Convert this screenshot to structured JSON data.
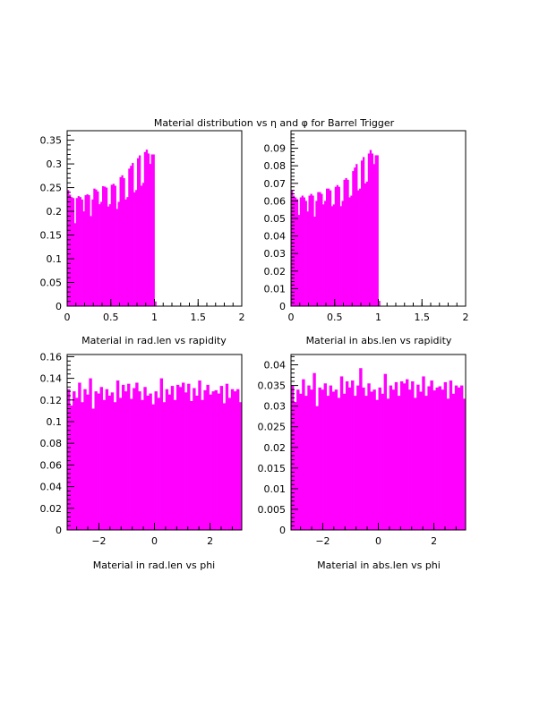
{
  "page": {
    "title": "Material distribution vs η and φ for Barrel Trigger"
  },
  "colors": {
    "bars": "#ff00ff",
    "axes": "#000000",
    "background": "#ffffff"
  },
  "chart_data": [
    {
      "type": "bar",
      "id": "radlen-vs-rapidity",
      "xlabel": "Material in rad.len vs rapidity",
      "ylabel": "",
      "xlim": [
        0,
        2
      ],
      "ylim": [
        0,
        0.37
      ],
      "xticks": [
        0,
        0.5,
        1,
        1.5,
        2
      ],
      "xtick_labels": [
        "0",
        "0.5",
        "1",
        "1.5",
        "2"
      ],
      "yticks": [
        0,
        0.05,
        0.1,
        0.15,
        0.2,
        0.25,
        0.3,
        0.35
      ],
      "ytick_labels": [
        "0",
        "0.05",
        "0.1",
        "0.15",
        "0.2",
        "0.25",
        "0.3",
        "0.35"
      ],
      "bin_width": 0.02,
      "x_start": 0,
      "values": [
        0.245,
        0.235,
        0.23,
        0.228,
        0.175,
        0.228,
        0.232,
        0.23,
        0.225,
        0.2,
        0.234,
        0.236,
        0.234,
        0.19,
        0.225,
        0.248,
        0.246,
        0.242,
        0.215,
        0.22,
        0.253,
        0.252,
        0.25,
        0.21,
        0.215,
        0.256,
        0.258,
        0.254,
        0.205,
        0.22,
        0.272,
        0.276,
        0.27,
        0.225,
        0.23,
        0.29,
        0.296,
        0.302,
        0.24,
        0.245,
        0.312,
        0.318,
        0.254,
        0.26,
        0.325,
        0.33,
        0.322,
        0.3,
        0.32,
        0.32,
        0.01
      ]
    },
    {
      "type": "bar",
      "id": "abslen-vs-rapidity",
      "xlabel": "Material in abs.len vs rapidity",
      "ylabel": "",
      "xlim": [
        0,
        2
      ],
      "ylim": [
        0,
        0.1
      ],
      "xticks": [
        0,
        0.5,
        1,
        1.5,
        2
      ],
      "xtick_labels": [
        "0",
        "0.5",
        "1",
        "1.5",
        "2"
      ],
      "yticks": [
        0,
        0.01,
        0.02,
        0.03,
        0.04,
        0.05,
        0.06,
        0.07,
        0.08,
        0.09
      ],
      "ytick_labels": [
        "0",
        "0.01",
        "0.02",
        "0.03",
        "0.04",
        "0.05",
        "0.06",
        "0.07",
        "0.08",
        "0.09"
      ],
      "bin_width": 0.02,
      "x_start": 0,
      "values": [
        0.066,
        0.063,
        0.062,
        0.061,
        0.052,
        0.062,
        0.063,
        0.062,
        0.06,
        0.054,
        0.063,
        0.064,
        0.063,
        0.051,
        0.06,
        0.065,
        0.065,
        0.064,
        0.058,
        0.06,
        0.067,
        0.067,
        0.066,
        0.057,
        0.058,
        0.068,
        0.069,
        0.068,
        0.057,
        0.06,
        0.072,
        0.073,
        0.072,
        0.062,
        0.063,
        0.077,
        0.079,
        0.081,
        0.066,
        0.067,
        0.083,
        0.085,
        0.07,
        0.071,
        0.087,
        0.089,
        0.087,
        0.081,
        0.086,
        0.086,
        0.003
      ]
    },
    {
      "type": "bar",
      "id": "radlen-vs-phi",
      "xlabel": "Material in rad.len vs phi",
      "ylabel": "",
      "xlim": [
        -3.1416,
        3.1416
      ],
      "ylim": [
        0,
        0.162
      ],
      "xticks": [
        -2,
        0,
        2
      ],
      "xtick_labels": [
        "−2",
        "0",
        "2"
      ],
      "yticks": [
        0,
        0.02,
        0.04,
        0.06,
        0.08,
        0.1,
        0.12,
        0.14,
        0.16
      ],
      "ytick_labels": [
        "0",
        "0.02",
        "0.04",
        "0.06",
        "0.08",
        "0.1",
        "0.12",
        "0.14",
        "0.16"
      ],
      "bin_width": 0.0982,
      "x_start": -3.1416,
      "values": [
        0.13,
        0.115,
        0.128,
        0.122,
        0.136,
        0.118,
        0.13,
        0.125,
        0.14,
        0.112,
        0.128,
        0.126,
        0.132,
        0.12,
        0.13,
        0.124,
        0.127,
        0.118,
        0.138,
        0.122,
        0.134,
        0.128,
        0.135,
        0.121,
        0.131,
        0.136,
        0.128,
        0.12,
        0.132,
        0.124,
        0.126,
        0.116,
        0.128,
        0.122,
        0.14,
        0.118,
        0.13,
        0.125,
        0.133,
        0.12,
        0.134,
        0.132,
        0.136,
        0.127,
        0.135,
        0.119,
        0.131,
        0.124,
        0.138,
        0.12,
        0.129,
        0.134,
        0.125,
        0.128,
        0.129,
        0.126,
        0.133,
        0.117,
        0.135,
        0.122,
        0.13,
        0.128,
        0.13,
        0.118
      ]
    },
    {
      "type": "bar",
      "id": "abslen-vs-phi",
      "xlabel": "Material in abs.len vs phi",
      "ylabel": "",
      "xlim": [
        -3.1416,
        3.1416
      ],
      "ylim": [
        0,
        0.0425
      ],
      "xticks": [
        -2,
        0,
        2
      ],
      "xtick_labels": [
        "−2",
        "0",
        "2"
      ],
      "yticks": [
        0,
        0.005,
        0.01,
        0.015,
        0.02,
        0.025,
        0.03,
        0.035,
        0.04
      ],
      "ytick_labels": [
        "0",
        "0.005",
        "0.01",
        "0.015",
        "0.02",
        "0.025",
        "0.03",
        "0.035",
        "0.04"
      ],
      "bin_width": 0.0982,
      "x_start": -3.1416,
      "values": [
        0.035,
        0.031,
        0.034,
        0.033,
        0.0365,
        0.0325,
        0.035,
        0.034,
        0.038,
        0.03,
        0.0345,
        0.034,
        0.0355,
        0.0325,
        0.035,
        0.0335,
        0.034,
        0.032,
        0.0372,
        0.033,
        0.036,
        0.0345,
        0.0362,
        0.0325,
        0.035,
        0.0392,
        0.0345,
        0.0325,
        0.0355,
        0.0335,
        0.034,
        0.0315,
        0.0345,
        0.033,
        0.0378,
        0.0318,
        0.035,
        0.034,
        0.0358,
        0.0325,
        0.036,
        0.0355,
        0.0365,
        0.034,
        0.036,
        0.032,
        0.0352,
        0.0335,
        0.0372,
        0.0325,
        0.0348,
        0.0362,
        0.0338,
        0.0345,
        0.0348,
        0.034,
        0.0358,
        0.0318,
        0.0362,
        0.033,
        0.035,
        0.0345,
        0.035,
        0.0318
      ]
    }
  ]
}
